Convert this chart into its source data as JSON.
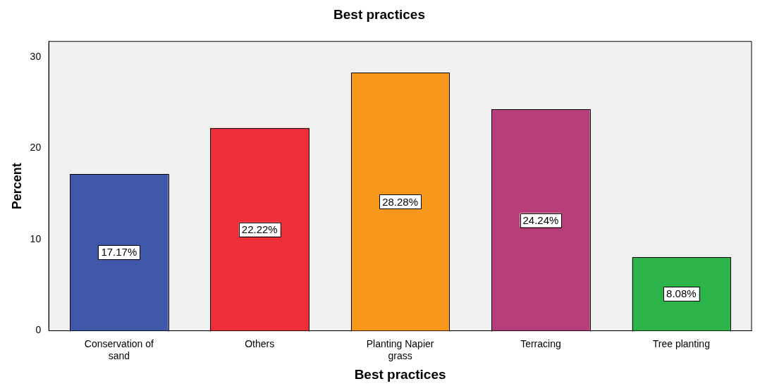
{
  "chart_data": {
    "type": "bar",
    "title": "Best practices",
    "xlabel": "Best practices",
    "ylabel": "Percent",
    "categories": [
      "Conservation of sand",
      "Others",
      "Planting Napier grass",
      "Terracing",
      "Tree planting"
    ],
    "values": [
      17.17,
      22.22,
      28.28,
      24.24,
      8.08
    ],
    "colors": [
      "#3f57a8",
      "#ee2e38",
      "#f7981d",
      "#b73d78",
      "#2db449"
    ],
    "value_labels": [
      "17.17%",
      "22.22%",
      "28.28%",
      "24.24%",
      "8.08%"
    ],
    "ylim": [
      0,
      31.7
    ],
    "yticks": [
      0,
      10,
      20,
      30
    ],
    "grid": false,
    "legend": false
  }
}
